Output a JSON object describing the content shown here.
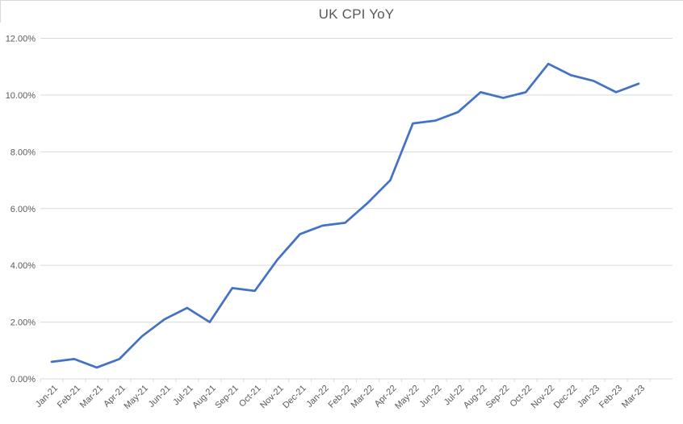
{
  "chart_data": {
    "type": "line",
    "title": "UK CPI YoY",
    "categories": [
      "Jan-21",
      "Feb-21",
      "Mar-21",
      "Apr-21",
      "May-21",
      "Jun-21",
      "Jul-21",
      "Aug-21",
      "Sep-21",
      "Oct-21",
      "Nov-21",
      "Dec-21",
      "Jan-22",
      "Feb-22",
      "Mar-22",
      "Apr-22",
      "May-22",
      "Jun-22",
      "Jul-22",
      "Aug-22",
      "Sep-22",
      "Oct-22",
      "Nov-22",
      "Dec-22",
      "Jan-23",
      "Feb-23",
      "Mar-23"
    ],
    "values": [
      0.6,
      0.7,
      0.4,
      0.7,
      1.5,
      2.1,
      2.5,
      2.0,
      3.2,
      3.1,
      4.2,
      5.1,
      5.4,
      5.5,
      6.2,
      7.0,
      9.0,
      9.1,
      9.4,
      10.1,
      9.9,
      10.1,
      11.1,
      10.7,
      10.5,
      10.1,
      10.4
    ],
    "xlabel": "",
    "ylabel": "",
    "ylim": [
      0,
      12
    ],
    "y_tick_step": 2,
    "y_tick_labels": [
      "0.00%",
      "2.00%",
      "4.00%",
      "6.00%",
      "8.00%",
      "10.00%",
      "12.00%"
    ],
    "grid": "horizontal",
    "legend_position": "none",
    "line_color": "#4472C4",
    "gridline_color": "#d9d9d9",
    "axis_color": "#d9d9d9",
    "label_color": "#595959",
    "title_color": "#595959"
  }
}
